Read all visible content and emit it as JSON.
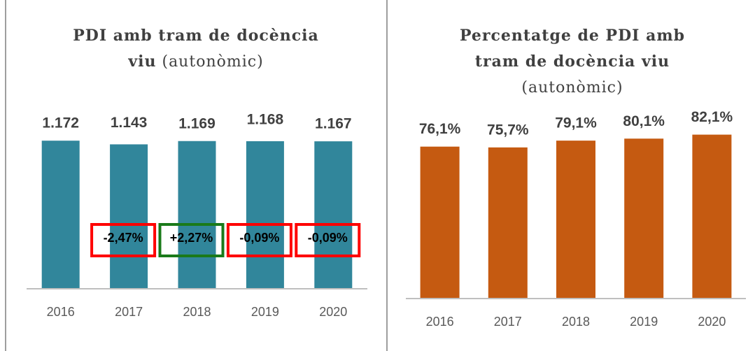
{
  "chart_data": [
    {
      "type": "bar",
      "title": [
        "PDI amb tram de docència",
        "viu"
      ],
      "subtitle": "(autonòmic)",
      "categories": [
        "2016",
        "2017",
        "2018",
        "2019",
        "2020"
      ],
      "values": [
        1172,
        1143,
        1169,
        1168,
        1167
      ],
      "value_labels": [
        "1.172",
        "1.143",
        "1.169",
        "1.168",
        "1.167"
      ],
      "color": "#31869b",
      "ylim": [
        0,
        1400
      ],
      "changes": [
        null,
        "-2,47%",
        "+2,27%",
        "-0,09%",
        "-0,09%"
      ],
      "change_colors": [
        null,
        "#ff0000",
        "#1a7a1a",
        "#ff0000",
        "#ff0000"
      ]
    },
    {
      "type": "bar",
      "title": [
        "Percentatge de PDI amb",
        "tram de docència viu"
      ],
      "subtitle": "(autonòmic)",
      "categories": [
        "2016",
        "2017",
        "2018",
        "2019",
        "2020"
      ],
      "values": [
        76.1,
        75.7,
        79.1,
        80.1,
        82.1
      ],
      "value_labels": [
        "76,1%",
        "75,7%",
        "79,1%",
        "80,1%",
        "82,1%"
      ],
      "color": "#c55a11",
      "ylim": [
        0,
        90
      ]
    }
  ]
}
